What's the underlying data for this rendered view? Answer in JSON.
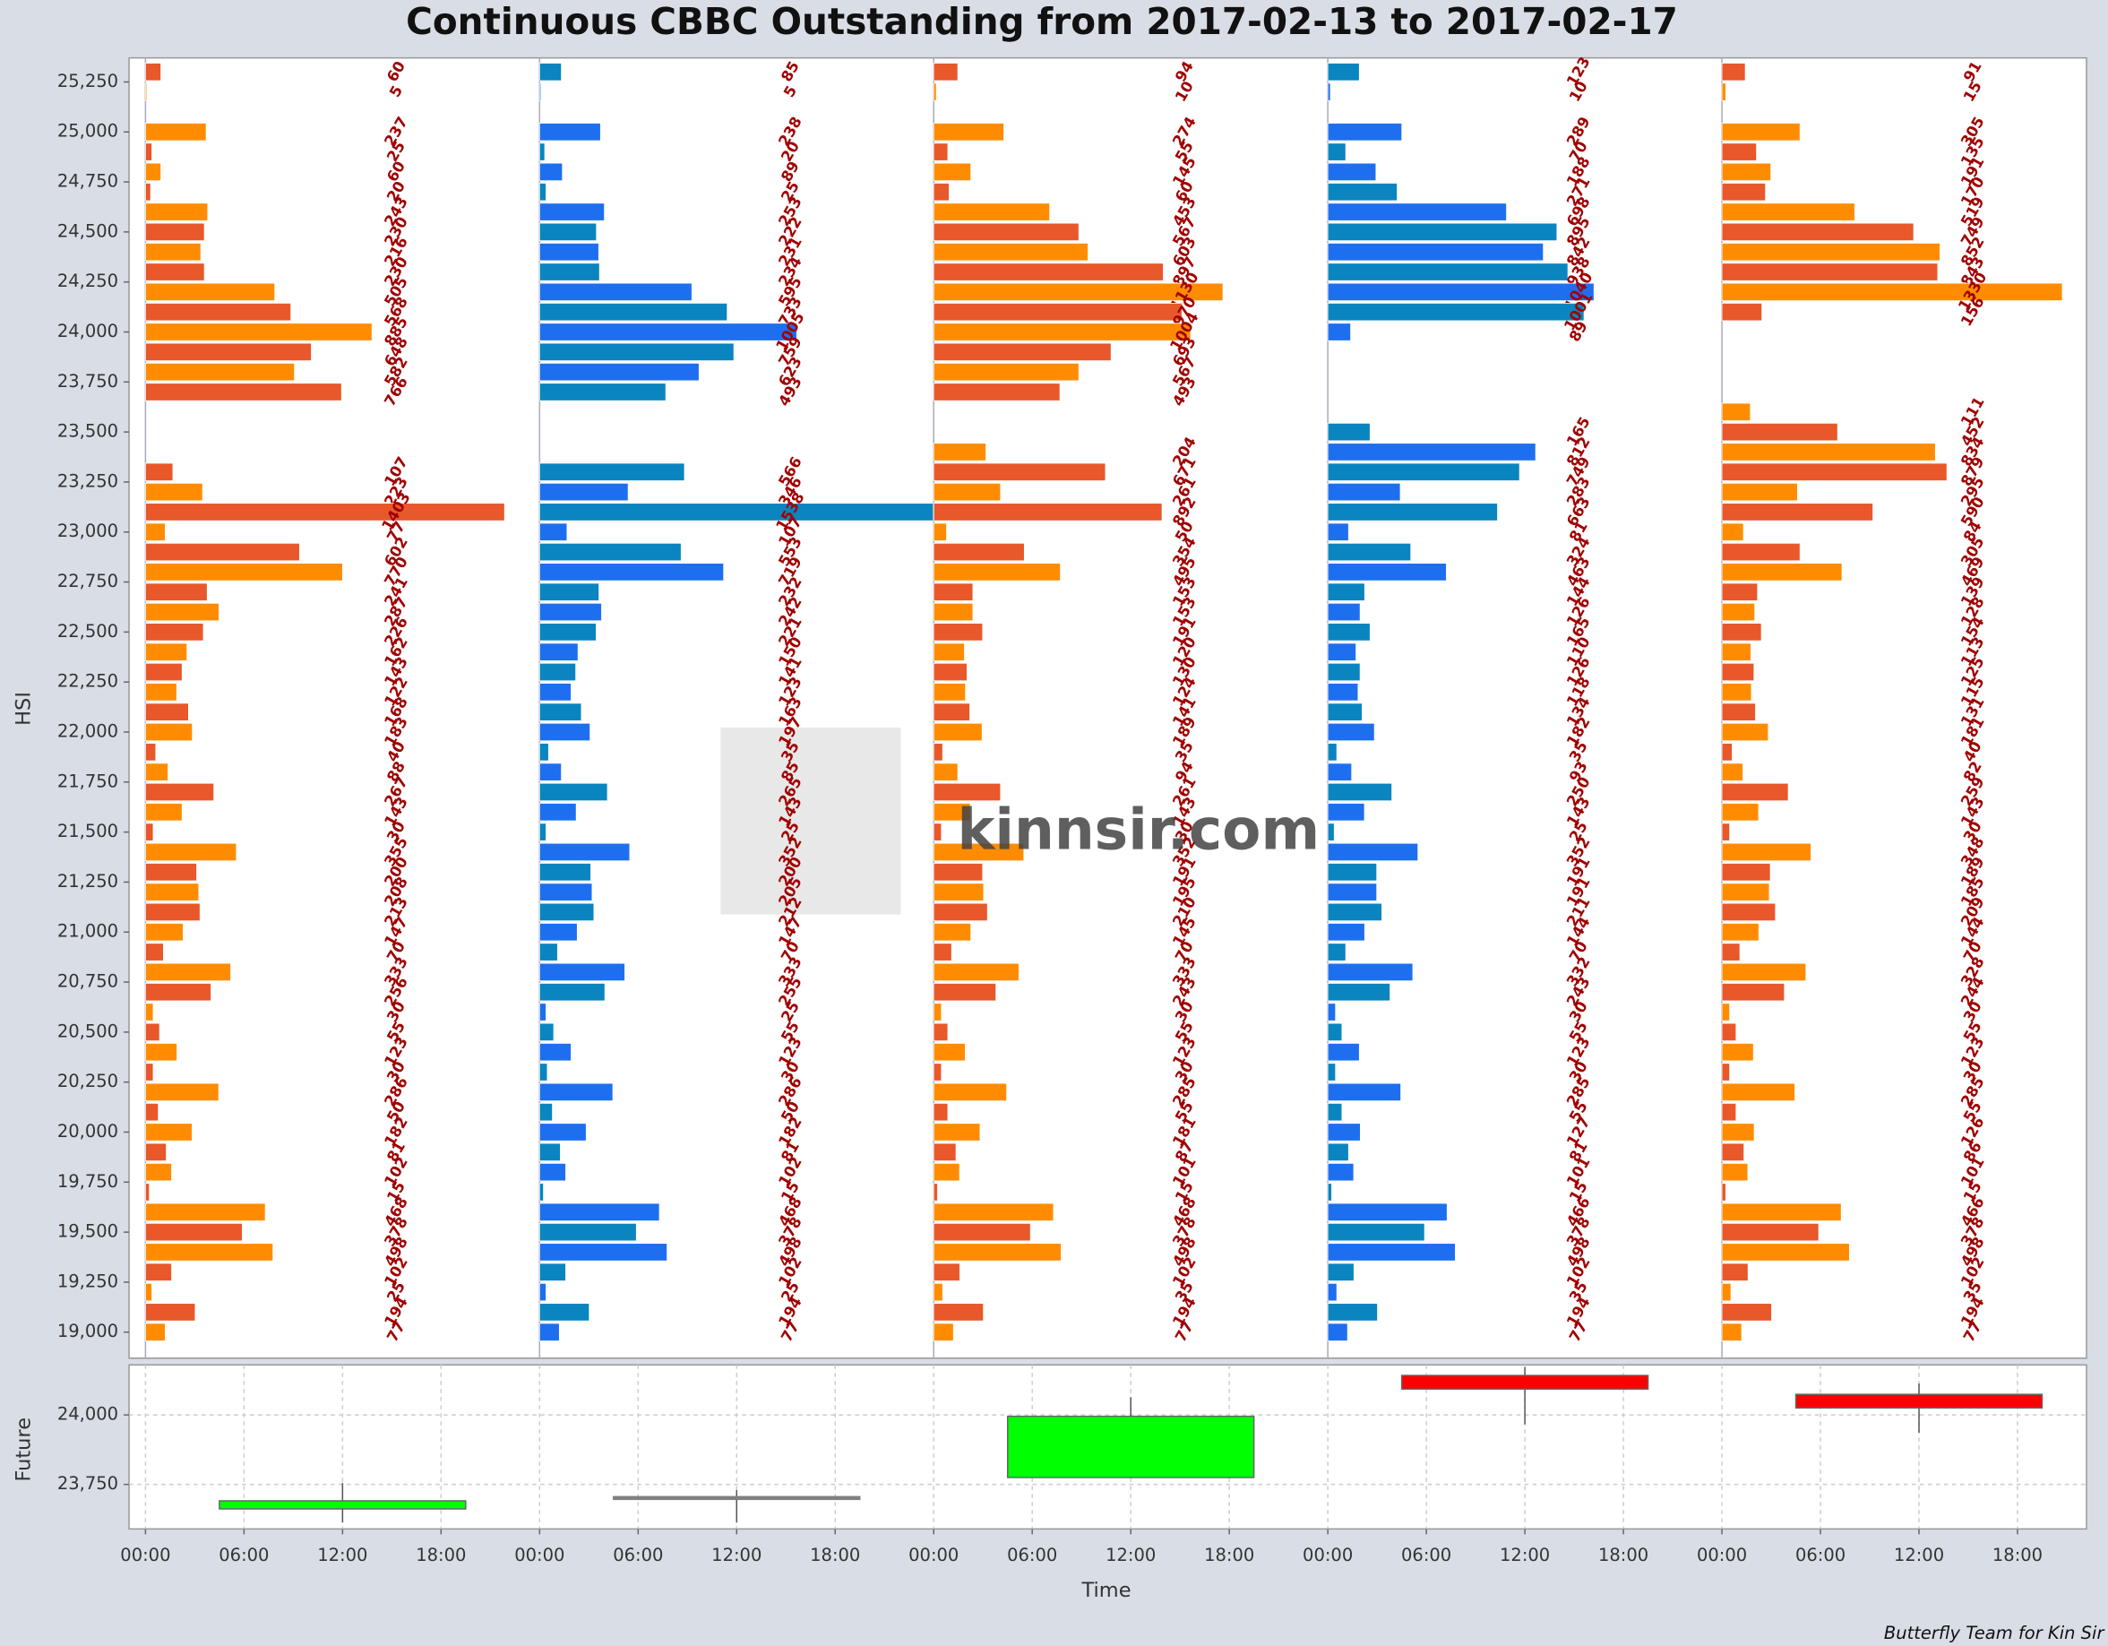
{
  "chart_data": [
    {
      "type": "hbar-panels",
      "title": "Continuous CBBC Outstanding from 2017-02-13 to 2017-02-17",
      "y_label": "HSI",
      "y": [
        25300,
        25200,
        25100,
        25000,
        24900,
        24800,
        24700,
        24600,
        24500,
        24400,
        24300,
        24200,
        24100,
        24000,
        23900,
        23800,
        23700,
        23600,
        23500,
        23400,
        23300,
        23200,
        23100,
        23000,
        22900,
        22800,
        22700,
        22600,
        22500,
        22400,
        22300,
        22200,
        22100,
        22000,
        21900,
        21800,
        21700,
        21600,
        21500,
        21400,
        21300,
        21200,
        21100,
        21000,
        20900,
        20800,
        20700,
        20600,
        20500,
        20400,
        20300,
        20200,
        20100,
        20000,
        19900,
        19800,
        19700,
        19600,
        19500,
        19400,
        19300,
        19200,
        19100,
        19000
      ],
      "ylim": [
        18870,
        25370
      ],
      "yticks": [
        {
          "value": 19000,
          "label": "19,000"
        },
        {
          "value": 19250,
          "label": "19,250"
        },
        {
          "value": 19500,
          "label": "19,500"
        },
        {
          "value": 19750,
          "label": "19,750"
        },
        {
          "value": 20000,
          "label": "20,000"
        },
        {
          "value": 20250,
          "label": "20,250"
        },
        {
          "value": 20500,
          "label": "20,500"
        },
        {
          "value": 20750,
          "label": "20,750"
        },
        {
          "value": 21000,
          "label": "21,000"
        },
        {
          "value": 21250,
          "label": "21,250"
        },
        {
          "value": 21500,
          "label": "21,500"
        },
        {
          "value": 21750,
          "label": "21,750"
        },
        {
          "value": 22000,
          "label": "22,000"
        },
        {
          "value": 22250,
          "label": "22,250"
        },
        {
          "value": 22500,
          "label": "22,500"
        },
        {
          "value": 22750,
          "label": "22,750"
        },
        {
          "value": 23000,
          "label": "23,000"
        },
        {
          "value": 23250,
          "label": "23,250"
        },
        {
          "value": 23500,
          "label": "23,500"
        },
        {
          "value": 23750,
          "label": "23,750"
        },
        {
          "value": 24000,
          "label": "24,000"
        },
        {
          "value": 24250,
          "label": "24,250"
        },
        {
          "value": 24500,
          "label": "24,500"
        },
        {
          "value": 24750,
          "label": "24,750"
        },
        {
          "value": 25000,
          "label": "25,000"
        },
        {
          "value": 25250,
          "label": "25,250"
        }
      ],
      "xlim": [
        0,
        1540
      ],
      "watermark": "kinnsir.com",
      "series": [
        {
          "start": 0,
          "colors": [
            "#e8582a",
            "#ff8c00"
          ],
          "values": [
            60,
            5,
            null,
            237,
            25,
            60,
            20,
            243,
            230,
            216,
            230,
            505,
            568,
            885,
            648,
            582,
            766,
            null,
            null,
            null,
            107,
            223,
            1403,
            77,
            602,
            770,
            241,
            287,
            226,
            162,
            143,
            122,
            168,
            183,
            40,
            88,
            267,
            143,
            30,
            355,
            200,
            208,
            213,
            147,
            70,
            333,
            256,
            30,
            55,
            123,
            30,
            286,
            50,
            182,
            81,
            102,
            15,
            468,
            378,
            498,
            102,
            25,
            194,
            77
          ]
        },
        {
          "start": 24,
          "colors": [
            "#0a85c0",
            "#1e6ff0"
          ],
          "values": [
            85,
            5,
            null,
            238,
            20,
            89,
            25,
            253,
            222,
            231,
            234,
            595,
            733,
            1005,
            759,
            623,
            493,
            null,
            null,
            null,
            566,
            346,
            1538,
            107,
            553,
            719,
            232,
            242,
            221,
            150,
            141,
            123,
            163,
            197,
            35,
            85,
            265,
            143,
            25,
            352,
            200,
            205,
            212,
            147,
            70,
            333,
            255,
            25,
            55,
            123,
            30,
            286,
            50,
            182,
            81,
            102,
            15,
            468,
            378,
            498,
            102,
            25,
            194,
            77
          ]
        },
        {
          "start": 48,
          "colors": [
            "#e8582a",
            "#ff8c00"
          ],
          "values": [
            94,
            10,
            null,
            274,
            55,
            145,
            60,
            453,
            567,
            603,
            897,
            1130,
            970,
            1004,
            693,
            567,
            493,
            null,
            null,
            204,
            671,
            261,
            892,
            50,
            354,
            495,
            153,
            153,
            191,
            120,
            130,
            124,
            141,
            189,
            35,
            94,
            261,
            143,
            30,
            352,
            191,
            195,
            210,
            145,
            70,
            333,
            243,
            30,
            55,
            123,
            30,
            285,
            55,
            181,
            87,
            101,
            15,
            468,
            378,
            498,
            102,
            35,
            194,
            77
          ]
        },
        {
          "start": 72,
          "colors": [
            "#0a85c0",
            "#1e6ff0"
          ],
          "values": [
            123,
            10,
            null,
            289,
            70,
            188,
            271,
            698,
            895,
            842,
            938,
            1040,
            1001,
            89,
            null,
            null,
            null,
            null,
            165,
            812,
            749,
            283,
            663,
            81,
            324,
            463,
            144,
            126,
            165,
            110,
            126,
            118,
            134,
            182,
            35,
            93,
            250,
            143,
            25,
            352,
            191,
            191,
            211,
            144,
            70,
            332,
            243,
            30,
            55,
            123,
            30,
            285,
            55,
            127,
            81,
            101,
            15,
            466,
            378,
            498,
            102,
            35,
            194,
            77
          ]
        },
        {
          "start": 96,
          "colors": [
            "#e8582a",
            "#ff8c00"
          ],
          "values": [
            91,
            15,
            null,
            305,
            135,
            191,
            170,
            519,
            749,
            852,
            843,
            1330,
            156,
            null,
            null,
            null,
            null,
            111,
            452,
            834,
            879,
            295,
            590,
            84,
            305,
            469,
            139,
            128,
            154,
            113,
            125,
            115,
            131,
            181,
            40,
            82,
            259,
            143,
            30,
            348,
            189,
            185,
            209,
            144,
            70,
            328,
            244,
            30,
            55,
            123,
            30,
            285,
            55,
            126,
            86,
            101,
            15,
            466,
            378,
            498,
            102,
            35,
            194,
            77
          ]
        }
      ]
    },
    {
      "type": "candlestick",
      "y_label": "Future",
      "x_label": "Time",
      "footer": "Butterfly Team for Kin Sir",
      "xlim": [
        -1,
        118.2
      ],
      "xticks": [
        {
          "value": 0,
          "label": "00:00"
        },
        {
          "value": 6,
          "label": "06:00"
        },
        {
          "value": 12,
          "label": "12:00"
        },
        {
          "value": 18,
          "label": "18:00"
        },
        {
          "value": 24,
          "label": "00:00"
        },
        {
          "value": 30,
          "label": "06:00"
        },
        {
          "value": 36,
          "label": "12:00"
        },
        {
          "value": 42,
          "label": "18:00"
        },
        {
          "value": 48,
          "label": "00:00"
        },
        {
          "value": 54,
          "label": "06:00"
        },
        {
          "value": 60,
          "label": "12:00"
        },
        {
          "value": 66,
          "label": "18:00"
        },
        {
          "value": 72,
          "label": "00:00"
        },
        {
          "value": 78,
          "label": "06:00"
        },
        {
          "value": 84,
          "label": "12:00"
        },
        {
          "value": 90,
          "label": "18:00"
        },
        {
          "value": 96,
          "label": "00:00"
        },
        {
          "value": 102,
          "label": "06:00"
        },
        {
          "value": 108,
          "label": "12:00"
        },
        {
          "value": 114,
          "label": "18:00"
        }
      ],
      "ylim": [
        23590,
        24180
      ],
      "yticks": [
        {
          "value": 23750,
          "label": "23,750"
        },
        {
          "value": 24000,
          "label": "24,000"
        }
      ],
      "up_color": "#00ff00",
      "down_color": "#ff0000",
      "flat_color": "#808080",
      "x": [
        12,
        36,
        60,
        84,
        108
      ],
      "open": [
        23662,
        23706,
        23775,
        24142,
        24074
      ],
      "high": [
        23755,
        23730,
        24064,
        24172,
        24113
      ],
      "low": [
        23613,
        23613,
        23775,
        23966,
        23936
      ],
      "close": [
        23691,
        23706,
        23995,
        24093,
        24025
      ]
    }
  ]
}
